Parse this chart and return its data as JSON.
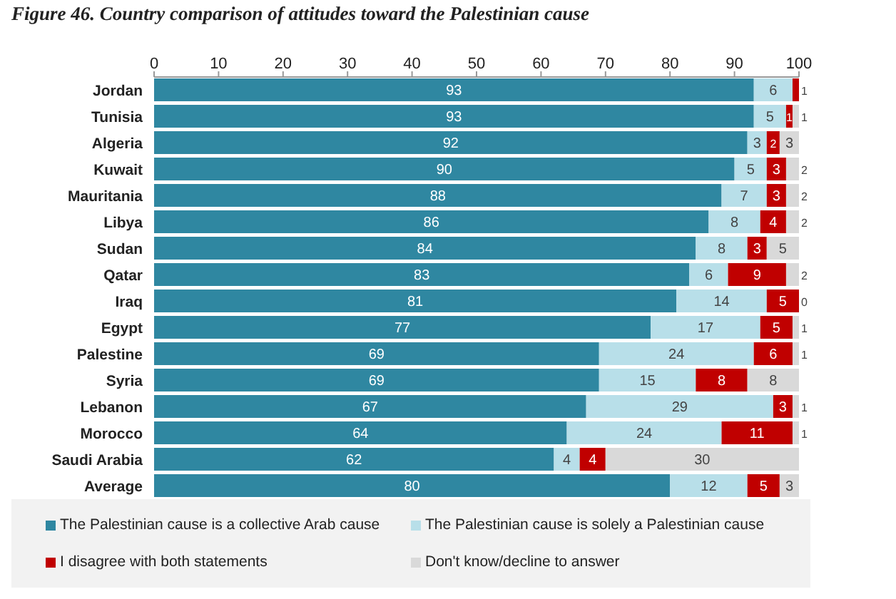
{
  "chart_data": {
    "type": "bar",
    "orientation": "horizontal",
    "stacked": true,
    "title": "Figure 46. Country comparison of attitudes toward the Palestinian cause",
    "categories": [
      "Jordan",
      "Tunisia",
      "Algeria",
      "Kuwait",
      "Mauritania",
      "Libya",
      "Sudan",
      "Qatar",
      "Iraq",
      "Egypt",
      "Palestine",
      "Syria",
      "Lebanon",
      "Morocco",
      "Saudi Arabia",
      "Average"
    ],
    "series": [
      {
        "name": "The Palestinian cause is a collective Arab cause",
        "color": "#2f87a1",
        "values": [
          93,
          93,
          92,
          90,
          88,
          86,
          84,
          83,
          81,
          77,
          69,
          69,
          67,
          64,
          62,
          80
        ]
      },
      {
        "name": "The Palestinian cause is solely a Palestinian cause",
        "color": "#b8dfe9",
        "values": [
          6,
          5,
          3,
          5,
          7,
          8,
          8,
          6,
          14,
          17,
          24,
          15,
          29,
          24,
          4,
          12
        ]
      },
      {
        "name": "I disagree with both statements",
        "color": "#c00000",
        "values": [
          1,
          1,
          2,
          3,
          3,
          4,
          3,
          9,
          5,
          5,
          6,
          8,
          3,
          11,
          4,
          5
        ]
      },
      {
        "name": "Don't know/decline to answer",
        "color": "#d9d9d9",
        "values": [
          null,
          1,
          3,
          2,
          2,
          2,
          5,
          2,
          0,
          1,
          1,
          8,
          1,
          1,
          30,
          3
        ]
      }
    ],
    "xlim": [
      0,
      100
    ],
    "xticks": [
      0,
      10,
      20,
      30,
      40,
      50,
      60,
      70,
      80,
      90,
      100
    ],
    "grid": false,
    "legend": "bottom",
    "data_labels": true
  }
}
